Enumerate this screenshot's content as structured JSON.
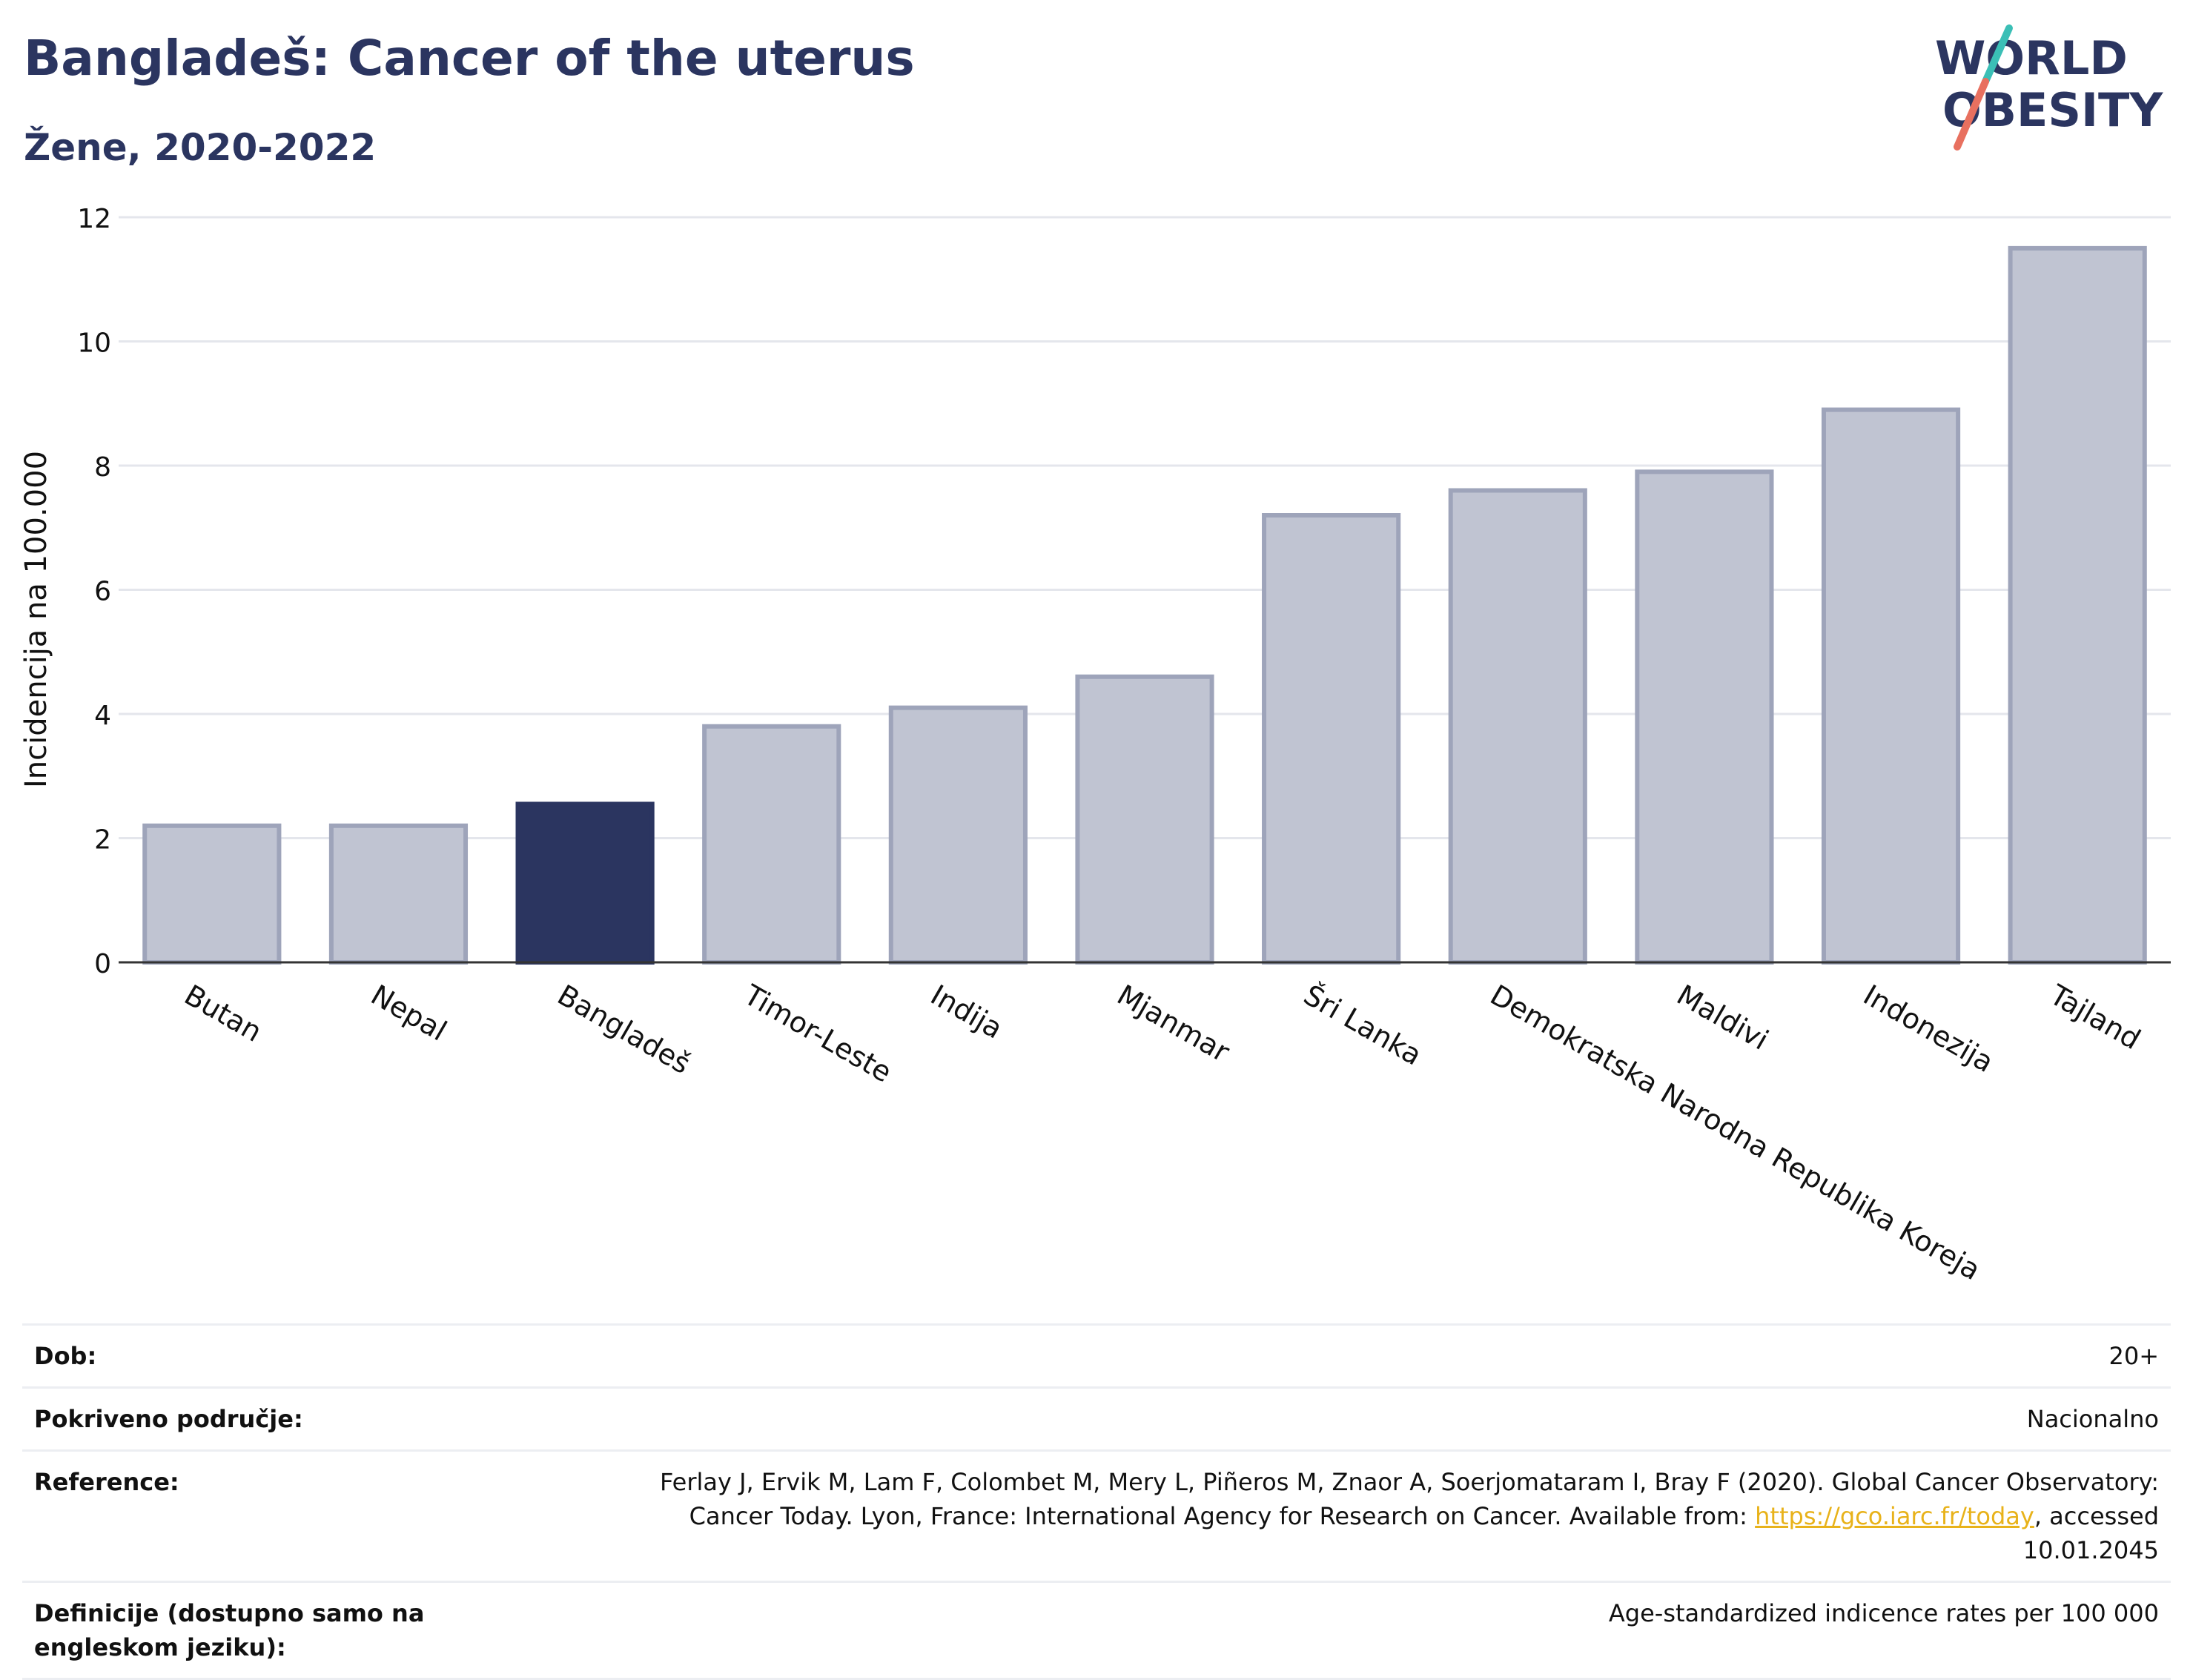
{
  "title": "Bangladeš: Cancer of the uterus",
  "subtitle": "Žene, 2020-2022",
  "logo": {
    "line1": "WORLD",
    "line2": "OBESITY",
    "colors": {
      "text": "#2b3560",
      "slash_top": "#3bbfb6",
      "slash_bottom": "#e8705f"
    }
  },
  "colors": {
    "bar": "#c0c4d2",
    "bar_stroke": "#9ea4ba",
    "highlight": "#2b3560",
    "grid": "#e4e6ec",
    "axis": "#333333"
  },
  "chart_data": {
    "type": "bar",
    "ylabel": "Incidencija na 100.000",
    "ylim": [
      0,
      12
    ],
    "yticks": [
      0,
      2,
      4,
      6,
      8,
      10,
      12
    ],
    "grid": true,
    "categories": [
      "Butan",
      "Nepal",
      "Bangladeš",
      "Timor-Leste",
      "Indija",
      "Mjanmar",
      "Šri Lanka",
      "Demokratska Narodna Republika Koreja",
      "Maldivi",
      "Indonezija",
      "Tajland"
    ],
    "values": [
      2.2,
      2.2,
      2.55,
      3.8,
      4.1,
      4.6,
      7.2,
      7.6,
      7.9,
      8.9,
      11.5
    ],
    "highlight": "Bangladeš"
  },
  "info": {
    "rows": [
      {
        "label": "Dob:",
        "value": "20+"
      },
      {
        "label": "Pokriveno područje:",
        "value": "Nacionalno"
      },
      {
        "label": "Reference:",
        "value_pre": "Ferlay J, Ervik M, Lam F, Colombet M, Mery L, Piñeros M, Znaor A, Soerjomataram I, Bray F (2020). Global Cancer Observatory: Cancer Today. Lyon, France: International Agency for Research on Cancer. Available from: ",
        "link": "https://gco.iarc.fr/today",
        "value_post": ", accessed 10.01.2045"
      },
      {
        "label": "Definicije (dostupno samo na engleskom jeziku):",
        "value": "Age-standardized indicence rates per 100 000"
      }
    ]
  }
}
